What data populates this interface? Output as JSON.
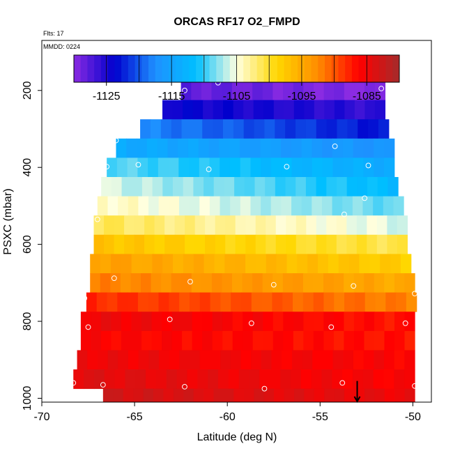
{
  "chart_data": {
    "type": "heatmap",
    "title": "ORCAS RF17 O2_FMPD",
    "annotations": {
      "flights": "Flts: 17",
      "date": "MMDD: 0224"
    },
    "xlabel": "Latitude (deg N)",
    "ylabel": "PSXC (mbar)",
    "xlim": [
      -70,
      -49
    ],
    "ylim": [
      1010,
      70
    ],
    "x_ticks": [
      -70,
      -65,
      -60,
      -55,
      -50
    ],
    "x_tick_labels": [
      "-70",
      "-65",
      "-60",
      "-55",
      "-50"
    ],
    "y_ticks": [
      200,
      400,
      600,
      800,
      1000
    ],
    "y_tick_labels": [
      "200",
      "400",
      "600",
      "800",
      "1000"
    ],
    "colorbar": {
      "range": [
        -1130,
        -1080
      ],
      "ticks": [
        -1125,
        -1115,
        -1105,
        -1095,
        -1085
      ],
      "tick_labels": [
        "-1125",
        "-1115",
        "-1105",
        "-1095",
        "-1085"
      ],
      "stops": [
        "#8a2be2",
        "#0000cd",
        "#1e90ff",
        "#00bfff",
        "#ffffe0",
        "#ffd700",
        "#ff8c00",
        "#ff0000",
        "#a52a2a"
      ]
    },
    "bands": [
      {
        "p_top": 175,
        "p_bot": 225,
        "lat_min": -62.5,
        "lat_max": -51.5,
        "v_left": -1128,
        "v_right": -1130
      },
      {
        "p_top": 225,
        "p_bot": 275,
        "lat_min": -63.5,
        "lat_max": -51.5,
        "v_left": -1124,
        "v_right": -1126
      },
      {
        "p_top": 275,
        "p_bot": 325,
        "lat_min": -64.7,
        "lat_max": -51.3,
        "v_left": -1118,
        "v_right": -1123
      },
      {
        "p_top": 325,
        "p_bot": 375,
        "lat_min": -66.0,
        "lat_max": -51.0,
        "v_left": -1114,
        "v_right": -1117
      },
      {
        "p_top": 375,
        "p_bot": 425,
        "lat_min": -66.5,
        "lat_max": -51.0,
        "v_left": -1109,
        "v_right": -1114
      },
      {
        "p_top": 425,
        "p_bot": 475,
        "lat_min": -66.8,
        "lat_max": -50.8,
        "v_left": -1106,
        "v_right": -1112
      },
      {
        "p_top": 475,
        "p_bot": 525,
        "lat_min": -67.0,
        "lat_max": -50.5,
        "v_left": -1104,
        "v_right": -1109
      },
      {
        "p_top": 525,
        "p_bot": 575,
        "lat_min": -67.2,
        "lat_max": -50.3,
        "v_left": -1101,
        "v_right": -1106
      },
      {
        "p_top": 575,
        "p_bot": 625,
        "lat_min": -67.2,
        "lat_max": -50.3,
        "v_left": -1097,
        "v_right": -1101
      },
      {
        "p_top": 625,
        "p_bot": 675,
        "lat_min": -67.4,
        "lat_max": -50.1,
        "v_left": -1094,
        "v_right": -1098
      },
      {
        "p_top": 675,
        "p_bot": 725,
        "lat_min": -67.4,
        "lat_max": -49.9,
        "v_left": -1092,
        "v_right": -1095
      },
      {
        "p_top": 725,
        "p_bot": 775,
        "lat_min": -67.6,
        "lat_max": -49.8,
        "v_left": -1088,
        "v_right": -1092
      },
      {
        "p_top": 775,
        "p_bot": 825,
        "lat_min": -67.9,
        "lat_max": -49.9,
        "v_left": -1085,
        "v_right": -1087
      },
      {
        "p_top": 825,
        "p_bot": 875,
        "lat_min": -67.9,
        "lat_max": -49.9,
        "v_left": -1086,
        "v_right": -1087
      },
      {
        "p_top": 875,
        "p_bot": 925,
        "lat_min": -68.1,
        "lat_max": -49.9,
        "v_left": -1085,
        "v_right": -1086
      },
      {
        "p_top": 925,
        "p_bot": 975,
        "lat_min": -68.3,
        "lat_max": -49.9,
        "v_left": -1084,
        "v_right": -1086
      },
      {
        "p_top": 975,
        "p_bot": 1010,
        "lat_min": -66.7,
        "lat_max": -49.9,
        "v_left": -1083,
        "v_right": -1085
      }
    ],
    "points": [
      [
        -60.5,
        180
      ],
      [
        -62.3,
        200
      ],
      [
        -51.7,
        195
      ],
      [
        -66.0,
        330
      ],
      [
        -54.2,
        345
      ],
      [
        -66.5,
        398
      ],
      [
        -64.8,
        393
      ],
      [
        -61.0,
        405
      ],
      [
        -56.8,
        398
      ],
      [
        -52.4,
        395
      ],
      [
        -52.6,
        480
      ],
      [
        -53.7,
        522
      ],
      [
        -67.0,
        535
      ],
      [
        -66.1,
        688
      ],
      [
        -62.0,
        697
      ],
      [
        -57.5,
        705
      ],
      [
        -53.2,
        708
      ],
      [
        -49.9,
        728
      ],
      [
        -67.7,
        740
      ],
      [
        -63.1,
        795
      ],
      [
        -58.7,
        805
      ],
      [
        -54.4,
        815
      ],
      [
        -50.4,
        805
      ],
      [
        -67.5,
        815
      ],
      [
        -68.3,
        960
      ],
      [
        -66.7,
        965
      ],
      [
        -62.3,
        970
      ],
      [
        -58.0,
        975
      ],
      [
        -53.8,
        960
      ],
      [
        -49.9,
        968
      ]
    ],
    "marker": {
      "lat": -53.0,
      "p_from": 955,
      "p_to": 1010
    }
  }
}
